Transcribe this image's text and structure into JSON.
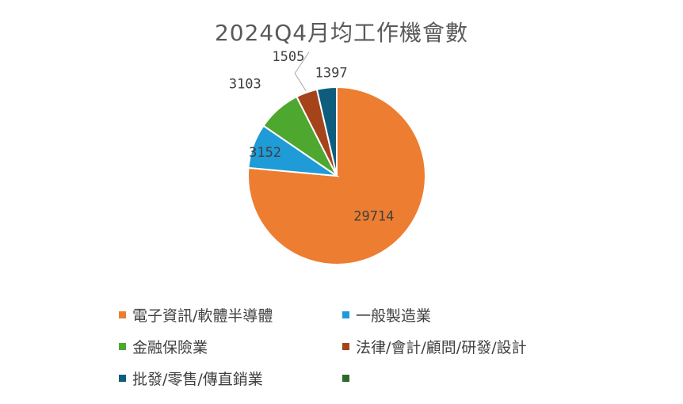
{
  "chart_data": {
    "type": "pie",
    "title": "2024Q4月均工作機會數",
    "slices": [
      {
        "name": "電子資訊/軟體半導體",
        "value": 29714,
        "color": "#ED7D31"
      },
      {
        "name": "一般製造業",
        "value": 3152,
        "color": "#1F9BD7"
      },
      {
        "name": "金融保險業",
        "value": 3103,
        "color": "#4EA72E"
      },
      {
        "name": "法律/會計/顧問/研發/設計",
        "value": 1505,
        "color": "#A5441B"
      },
      {
        "name": "批發/零售/傳直銷業",
        "value": 1397,
        "color": "#0F5D7E"
      }
    ],
    "extra_legend_entries": [
      {
        "name": "",
        "color": "#2E6B2A"
      }
    ],
    "start_angle_deg": 0,
    "direction": "clockwise",
    "legend_position": "bottom"
  }
}
